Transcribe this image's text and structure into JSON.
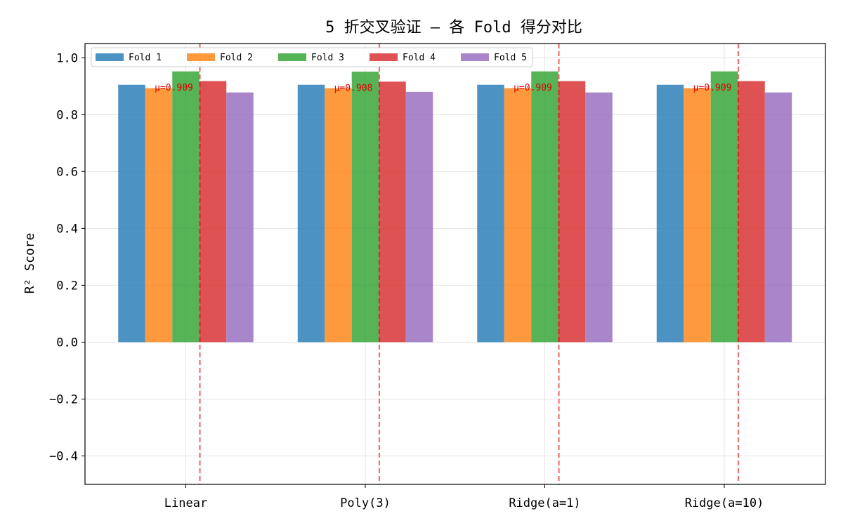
{
  "colors": {
    "Fold 1": "#1f77b4",
    "Fold 2": "#ff7f0e",
    "Fold 3": "#2ca02c",
    "Fold 4": "#d62728",
    "Fold 5": "#9467bd",
    "mean_line": "#e00000"
  },
  "chart_data": {
    "type": "bar",
    "title": "5 折交叉验证 — 各 Fold 得分对比",
    "xlabel": "",
    "ylabel": "R² Score",
    "ylim": [
      -0.5,
      1.05
    ],
    "yticks": [
      "−0.4",
      "−0.2",
      "0.0",
      "0.2",
      "0.4",
      "0.6",
      "0.8",
      "1.0"
    ],
    "ytick_values": [
      -0.4,
      -0.2,
      0.0,
      0.2,
      0.4,
      0.6,
      0.8,
      1.0
    ],
    "grid": true,
    "legend_position": "top-left",
    "categories": [
      "Linear",
      "Poly(3)",
      "Ridge(a=1)",
      "Ridge(a=10)"
    ],
    "series": [
      {
        "name": "Fold 1",
        "values": [
          0.905,
          0.905,
          0.905,
          0.905
        ]
      },
      {
        "name": "Fold 2",
        "values": [
          0.893,
          0.893,
          0.893,
          0.893
        ]
      },
      {
        "name": "Fold 3",
        "values": [
          0.952,
          0.951,
          0.952,
          0.952
        ]
      },
      {
        "name": "Fold 4",
        "values": [
          0.918,
          0.916,
          0.918,
          0.918
        ]
      },
      {
        "name": "Fold 5",
        "values": [
          0.878,
          0.88,
          0.878,
          0.878
        ]
      }
    ],
    "means": [
      0.909,
      0.908,
      0.909,
      0.909
    ],
    "mean_labels": [
      "μ=0.909",
      "μ=0.908",
      "μ=0.909",
      "μ=0.909"
    ]
  }
}
